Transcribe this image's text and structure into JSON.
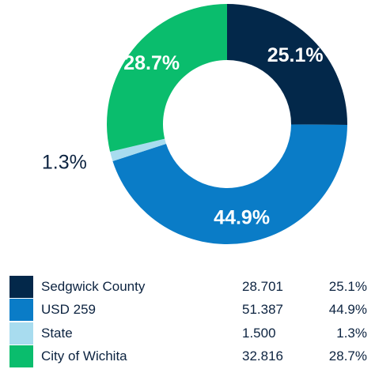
{
  "chart_data": {
    "type": "pie",
    "style": "donut",
    "slices": [
      {
        "name": "Sedgwick County",
        "value": "28.701",
        "percent": 25.1,
        "percent_label": "25.1%",
        "color": "#03284a"
      },
      {
        "name": "USD 259",
        "value": "51.387",
        "percent": 44.9,
        "percent_label": "44.9%",
        "color": "#0a7cc7"
      },
      {
        "name": "State",
        "value": "1.500",
        "percent": 1.3,
        "percent_label": "1.3%",
        "color": "#a8dcef"
      },
      {
        "name": "City of Wichita",
        "value": "32.816",
        "percent": 28.7,
        "percent_label": "28.7%",
        "color": "#0abd6d"
      }
    ],
    "legend_position": "bottom"
  }
}
